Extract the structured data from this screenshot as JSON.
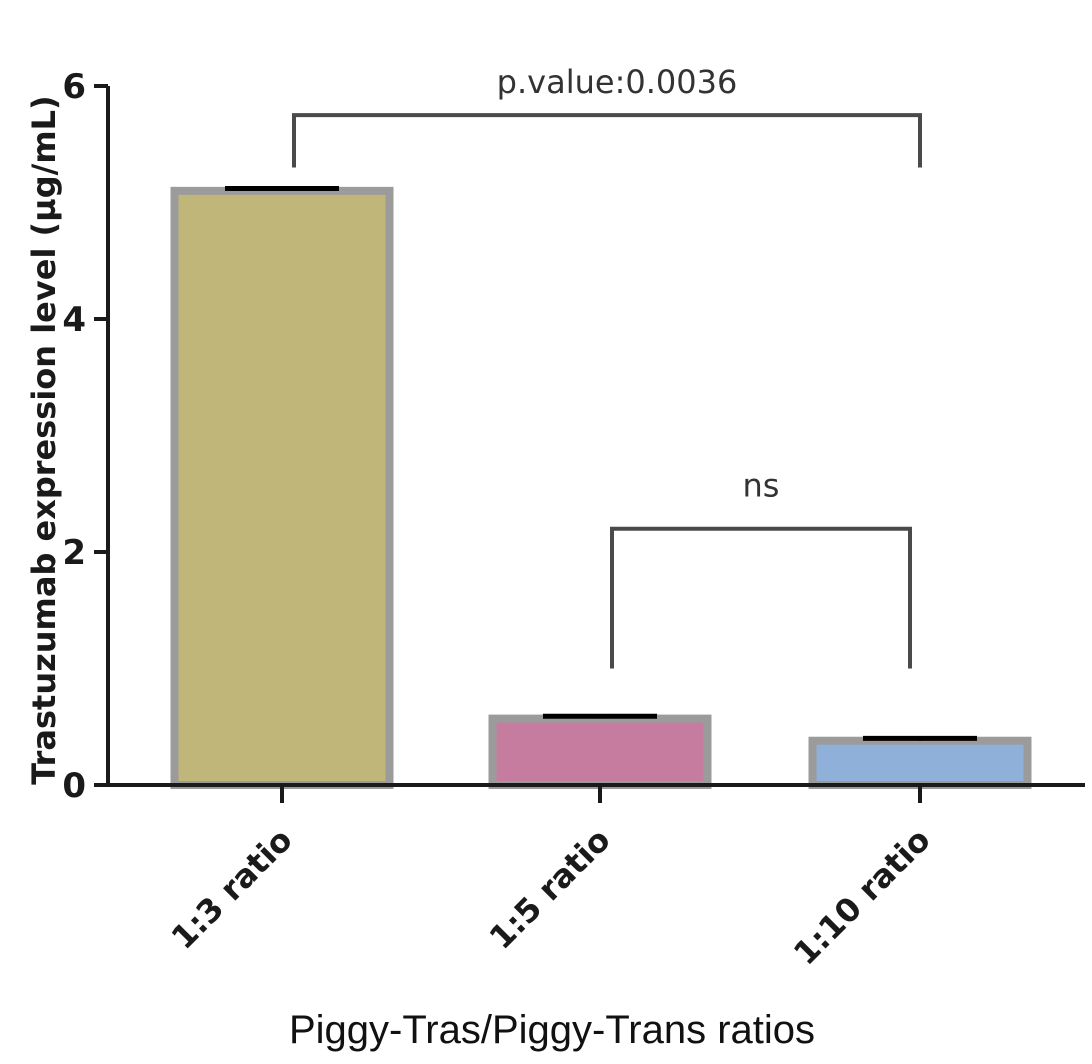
{
  "chart_data": {
    "type": "bar",
    "categories": [
      "1:3 ratio",
      "1:5 ratio",
      "1:10 ratio"
    ],
    "values": [
      5.1,
      0.57,
      0.38
    ],
    "errors": [
      0.02,
      0.02,
      0.02
    ],
    "colors": [
      "#c1b67a",
      "#c57c9e",
      "#8fb0d8"
    ],
    "border_color": "#9b9b9b",
    "xlabel": "Piggy-Tras/Piggy-Trans ratios",
    "ylabel": "Trastuzumab expression level  (µg/mL)",
    "ylim": [
      0,
      6
    ],
    "yticks": [
      0,
      2,
      4,
      6
    ],
    "grid": false,
    "annotations": [
      {
        "text": "p.value:0.0036",
        "from": 0,
        "to": 2,
        "level": 5.75
      },
      {
        "text": "ns",
        "from": 1,
        "to": 2,
        "level": 2.2
      }
    ]
  }
}
